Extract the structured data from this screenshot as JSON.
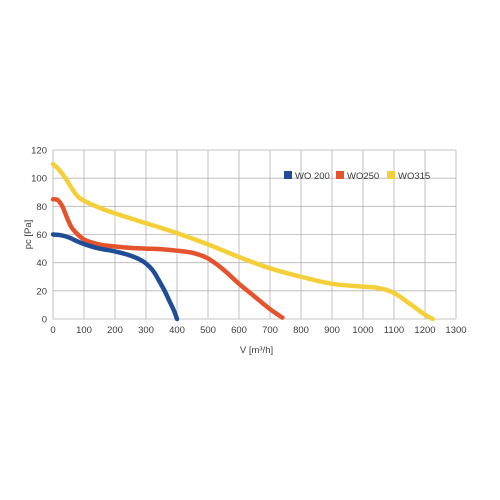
{
  "chart_data": {
    "type": "line",
    "xlabel": "V [m³/h]",
    "ylabel": "pc [Pa]",
    "xlim": [
      0,
      1300
    ],
    "ylim": [
      0,
      120
    ],
    "xticks": [
      0,
      100,
      200,
      300,
      400,
      500,
      600,
      700,
      800,
      900,
      1000,
      1100,
      1200,
      1300
    ],
    "yticks": [
      0,
      20,
      40,
      60,
      80,
      100,
      120
    ],
    "grid": true,
    "legend_position": "top-right",
    "series": [
      {
        "name": "WO 200",
        "color": "#1f4e96",
        "x": [
          0,
          25,
          50,
          80,
          110,
          150,
          200,
          250,
          290,
          320,
          340,
          360,
          375,
          390,
          400
        ],
        "y": [
          60,
          59.5,
          58,
          55,
          52.5,
          50,
          48,
          45,
          41,
          35,
          28,
          20,
          13,
          6,
          0
        ]
      },
      {
        "name": "WO250",
        "color": "#e5532d",
        "x": [
          0,
          15,
          30,
          45,
          60,
          80,
          100,
          130,
          160,
          200,
          250,
          300,
          350,
          400,
          450,
          500,
          550,
          600,
          650,
          700,
          740
        ],
        "y": [
          85,
          84.5,
          80,
          72,
          65,
          60,
          56.5,
          54,
          52.5,
          51.5,
          50.5,
          50,
          49.5,
          48.5,
          47,
          43,
          35,
          25,
          16,
          7,
          1
        ]
      },
      {
        "name": "WO315",
        "color": "#f5cf3a",
        "x": [
          0,
          20,
          40,
          60,
          80,
          100,
          150,
          200,
          300,
          400,
          500,
          600,
          700,
          800,
          900,
          1000,
          1050,
          1100,
          1150,
          1200,
          1225
        ],
        "y": [
          110,
          106,
          100,
          93,
          87,
          84,
          79,
          75,
          68,
          61,
          53,
          44,
          36,
          30,
          25,
          23,
          22,
          18.5,
          11,
          3,
          0
        ]
      }
    ]
  }
}
